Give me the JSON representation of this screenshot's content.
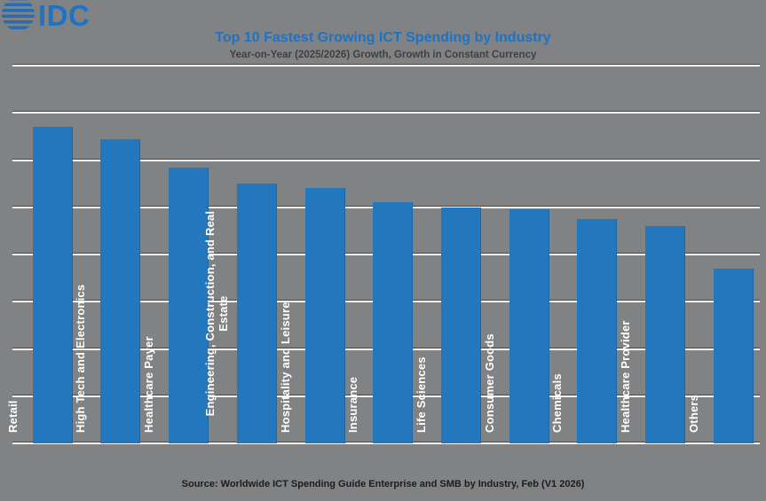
{
  "logo": {
    "text": "IDC"
  },
  "header": {
    "title": "Top 10 Fastest Growing ICT Spending by Industry",
    "subtitle": "Year-on-Year (2025/2026) Growth, Growth in Constant Currency"
  },
  "footer": {
    "source": "Source: Worldwide ICT Spending Guide Enterprise and SMB by Industry, Feb (V1 2026)"
  },
  "chart_data": {
    "type": "bar",
    "title": "Top 10 Fastest Growing ICT Spending by Industry",
    "subtitle": "Year-on-Year (2025/2026) Growth, Growth in Constant Currency",
    "categories": [
      "Retail",
      "High Tech and Electronics",
      "Healthcare Payer",
      "Engineering, Construction, and Real Estate",
      "Hospitality and Leisure",
      "Insurance",
      "Life Sciences",
      "Consumer Goods",
      "Chemicals",
      "Healthcare Provider",
      "Others"
    ],
    "values": [
      6.7,
      6.45,
      5.85,
      5.5,
      5.4,
      5.1,
      5.0,
      4.95,
      4.75,
      4.6,
      3.7
    ],
    "value_note": "No numeric axis labels are shown in the image; values estimated in gridline units (baseline 0 to top gridline 8, one unit per gridline interval).",
    "ylim": [
      0,
      8
    ],
    "gridline_interval": 1,
    "grid": "horizontal white gridlines on gray background",
    "legend": "none",
    "xlabel": "",
    "ylabel": "",
    "bar_color": "#2377BD",
    "bar_label_color": "#FFFFFF",
    "source": "Source: Worldwide ICT Spending Guide Enterprise and SMB by Industry, Feb (V1 2026)"
  },
  "colors": {
    "background": "#818284",
    "title": "#1E73C4",
    "subtitle": "#404040",
    "bar": "#2377BD",
    "gridline": "#FDFDFD",
    "logo_blue": "#1C74C4",
    "source_text": "#1C1C1C"
  }
}
